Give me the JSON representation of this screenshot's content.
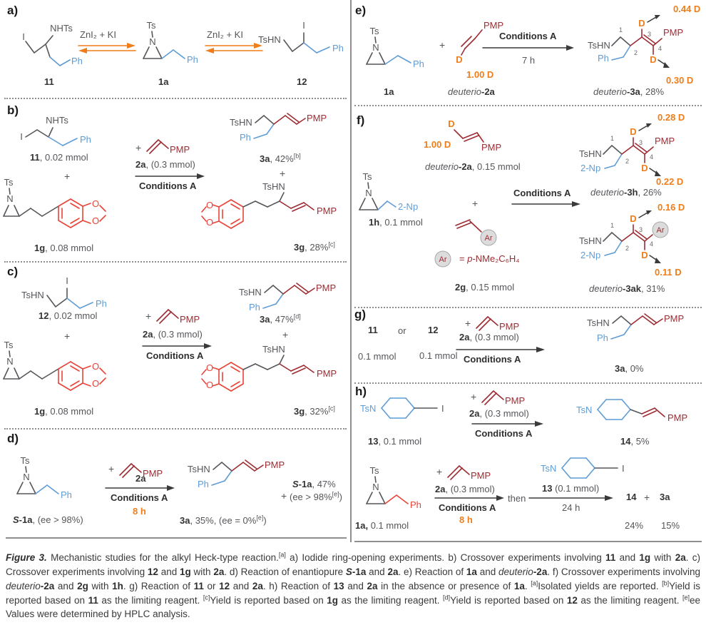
{
  "glyphs": {
    "ts": "Ts",
    "n": "N",
    "ph": "Ph",
    "pmp": "PMP",
    "tshn": "TsHN",
    "nhts": "NHTs",
    "iodine": "I",
    "d": "D",
    "o": "O",
    "ar": "Ar",
    "np": "2-Np",
    "tsn": "TsN",
    "plus": "+",
    "c1": "1",
    "c2": "2",
    "c3": "3",
    "c4": "4"
  },
  "panels": {
    "a": {
      "label": "a)",
      "zni_left": "ZnI₂ + KI",
      "zni_right": "ZnI₂ + KI",
      "c11": "11",
      "c1a": "1a",
      "c12": "12"
    },
    "b": {
      "label": "b)",
      "cap11": [
        {
          "t": "11",
          "b": 1
        },
        {
          "t": ", 0.02 mmol"
        }
      ],
      "cap1g": [
        {
          "t": "1g",
          "b": 1
        },
        {
          "t": ", 0.08 mmol"
        }
      ],
      "r2a": [
        {
          "t": "2a",
          "b": 1
        },
        {
          "t": ", (0.3 mmol)"
        }
      ],
      "cond": "Conditions A",
      "cap3a": [
        {
          "t": "3a",
          "b": 1
        },
        {
          "t": ", 42%"
        },
        {
          "t": "[b]",
          "s": 1
        }
      ],
      "cap3g": [
        {
          "t": "3g",
          "b": 1
        },
        {
          "t": ", 28%"
        },
        {
          "t": "[c]",
          "s": 1
        }
      ]
    },
    "c": {
      "label": "c)",
      "cap12": [
        {
          "t": "12",
          "b": 1
        },
        {
          "t": ", 0.02 mmol"
        }
      ],
      "cap1g": [
        {
          "t": "1g",
          "b": 1
        },
        {
          "t": ", 0.08 mmol"
        }
      ],
      "r2a": [
        {
          "t": "2a",
          "b": 1
        },
        {
          "t": ", (0.3 mmol)"
        }
      ],
      "cond": "Conditions A",
      "cap3a": [
        {
          "t": "3a",
          "b": 1
        },
        {
          "t": ", 47%"
        },
        {
          "t": "[d]",
          "s": 1
        }
      ],
      "cap3g": [
        {
          "t": "3g",
          "b": 1
        },
        {
          "t": ", 32%"
        },
        {
          "t": "[c]",
          "s": 1
        }
      ]
    },
    "d": {
      "label": "d)",
      "capS1a": [
        {
          "t": "S",
          "b": 1,
          "i": 1
        },
        {
          "t": "-1a",
          "b": 1
        },
        {
          "t": ", (ee > 98%)"
        }
      ],
      "r2a": [
        {
          "t": "2a",
          "b": 1
        }
      ],
      "cond": "Conditions A",
      "time": "8 h",
      "cap3a": [
        {
          "t": "3a",
          "b": 1
        },
        {
          "t": ", 35%, (ee = 0%"
        },
        {
          "t": "[e]",
          "s": 1
        },
        {
          "t": ")"
        }
      ],
      "side1": [
        {
          "t": "S",
          "b": 1,
          "i": 1
        },
        {
          "t": "-1a",
          "b": 1
        },
        {
          "t": ", 47%"
        }
      ],
      "side2": [
        {
          "t": "(ee > 98%"
        },
        {
          "t": "[e]",
          "s": 1
        },
        {
          "t": ")"
        }
      ]
    },
    "e": {
      "label": "e)",
      "cap1a": [
        {
          "t": "1a",
          "b": 1
        }
      ],
      "d100": "1.00 D",
      "capd2a": [
        {
          "t": "deuterio",
          "i": 1
        },
        {
          "t": "-2a",
          "b": 1
        }
      ],
      "cond": "Conditions A",
      "time": "7 h",
      "dvtop": "0.44 D",
      "dvbot": "0.30 D",
      "capd3a": [
        {
          "t": "deuterio",
          "i": 1
        },
        {
          "t": "-3a",
          "b": 1
        },
        {
          "t": ", 28%"
        }
      ]
    },
    "f": {
      "label": "f)",
      "d100": "1.00 D",
      "capd2a": [
        {
          "t": "deuterio",
          "i": 1
        },
        {
          "t": "-2a",
          "b": 1
        },
        {
          "t": ", 0.15 mmol"
        }
      ],
      "cap1h": [
        {
          "t": "1h",
          "b": 1
        },
        {
          "t": ", 0.1 mmol"
        }
      ],
      "arleg": [
        {
          "t": "= "
        },
        {
          "t": "p",
          "i": 1
        },
        {
          "t": "-NMe₂C₆H₄"
        }
      ],
      "cap2g": [
        {
          "t": "2g",
          "b": 1
        },
        {
          "t": ", 0.15 mmol"
        }
      ],
      "cond": "Conditions A",
      "dv1top": "0.28 D",
      "dv1bot": "0.22 D",
      "capd3h": [
        {
          "t": "deuterio",
          "i": 1
        },
        {
          "t": "-3h",
          "b": 1
        },
        {
          "t": ", 26%"
        }
      ],
      "dv2top": "0.16 D",
      "dv2bot": "0.11 D",
      "capd3ak": [
        {
          "t": "deuterio",
          "i": 1
        },
        {
          "t": "-3ak",
          "b": 1
        },
        {
          "t": ", 31%"
        }
      ]
    },
    "g": {
      "label": "g)",
      "c11": "11",
      "or": "or",
      "c12": "12",
      "mmol1": "0.1 mmol",
      "mmol2": "0.1 mmol",
      "r2a": [
        {
          "t": "2a",
          "b": 1
        },
        {
          "t": ", (0.3 mmol)"
        }
      ],
      "cond": "Conditions A",
      "cap3a": [
        {
          "t": "3a",
          "b": 1
        },
        {
          "t": ", 0%"
        }
      ]
    },
    "h": {
      "label": "h)",
      "cap13": [
        {
          "t": "13",
          "b": 1
        },
        {
          "t": ", 0.1 mmol"
        }
      ],
      "r2a": [
        {
          "t": "2a",
          "b": 1
        },
        {
          "t": ", (0.3 mmol)"
        }
      ],
      "cond": "Conditions A",
      "cap14": [
        {
          "t": "14",
          "b": 1
        },
        {
          "t": ", 5%"
        }
      ],
      "cap1a": [
        {
          "t": "1a,",
          "b": 1
        },
        {
          "t": " 0.1 mmol"
        }
      ],
      "r2a2": [
        {
          "t": "2a",
          "b": 1
        },
        {
          "t": ", (0.3 mmol)"
        }
      ],
      "cond2": "Conditions A",
      "time": "8 h",
      "then": "then",
      "r13": [
        {
          "t": "13",
          "b": 1
        },
        {
          "t": " (0.1 mmol)"
        }
      ],
      "time2": "24 h",
      "p14": "14",
      "plus": "+",
      "p3a": "3a",
      "y14": "24%",
      "y3a": "15%"
    }
  },
  "caption": {
    "segments": [
      {
        "t": "Figure 3.",
        "b": 1,
        "i": 1
      },
      {
        "t": " Mechanistic studies for the alkyl Heck-type reaction."
      },
      {
        "t": "[a]",
        "s": 1
      },
      {
        "t": " a) Iodide ring-opening experiments. b) Crossover experiments involving "
      },
      {
        "t": "11",
        "b": 1
      },
      {
        "t": " and "
      },
      {
        "t": "1g",
        "b": 1
      },
      {
        "t": " with "
      },
      {
        "t": "2a",
        "b": 1
      },
      {
        "t": ". c) Crossover experiments involving "
      },
      {
        "t": "12",
        "b": 1
      },
      {
        "t": " and "
      },
      {
        "t": "1g",
        "b": 1
      },
      {
        "t": " with "
      },
      {
        "t": "2a",
        "b": 1
      },
      {
        "t": ". d) Reaction of enantiopure "
      },
      {
        "t": "S",
        "b": 1,
        "i": 1
      },
      {
        "t": "-1a",
        "b": 1
      },
      {
        "t": " and "
      },
      {
        "t": "2a",
        "b": 1
      },
      {
        "t": ". e) Reaction of "
      },
      {
        "t": "1a",
        "b": 1
      },
      {
        "t": " and "
      },
      {
        "t": "deuterio",
        "i": 1
      },
      {
        "t": "-2a",
        "b": 1
      },
      {
        "t": ". f) Crossover experiments involving "
      },
      {
        "t": "deuterio",
        "i": 1
      },
      {
        "t": "-2a",
        "b": 1
      },
      {
        "t": " and "
      },
      {
        "t": "2g",
        "b": 1
      },
      {
        "t": " with "
      },
      {
        "t": "1h",
        "b": 1
      },
      {
        "t": ". g) Reaction of "
      },
      {
        "t": "11",
        "b": 1
      },
      {
        "t": " or "
      },
      {
        "t": "12",
        "b": 1
      },
      {
        "t": " and "
      },
      {
        "t": "2a",
        "b": 1
      },
      {
        "t": ". h) Reaction of "
      },
      {
        "t": "13",
        "b": 1
      },
      {
        "t": " and "
      },
      {
        "t": "2a",
        "b": 1
      },
      {
        "t": " in the absence or presence of "
      },
      {
        "t": "1a",
        "b": 1
      },
      {
        "t": ". "
      },
      {
        "t": "[a]",
        "s": 1
      },
      {
        "t": "Isolated yields are reported. "
      },
      {
        "t": "[b]",
        "s": 1
      },
      {
        "t": "Yield is reported based on "
      },
      {
        "t": "11",
        "b": 1
      },
      {
        "t": " as the limiting reagent. "
      },
      {
        "t": "[c]",
        "s": 1
      },
      {
        "t": "Yield is reported based on "
      },
      {
        "t": "1g",
        "b": 1
      },
      {
        "t": " as the limiting reagent. "
      },
      {
        "t": "[d]",
        "s": 1
      },
      {
        "t": "Yield is reported based on "
      },
      {
        "t": "12",
        "b": 1
      },
      {
        "t": " as the limiting reagent. "
      },
      {
        "t": "[e]",
        "s": 1
      },
      {
        "t": "ee Values were determined by HPLC analysis."
      }
    ]
  }
}
